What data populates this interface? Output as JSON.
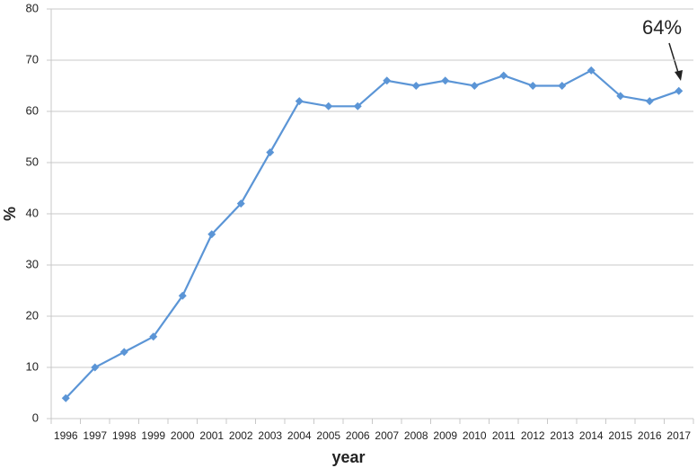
{
  "chart_data": {
    "type": "line",
    "x_label": "year",
    "y_label": "%",
    "categories": [
      "1996",
      "1997",
      "1998",
      "1999",
      "2000",
      "2001",
      "2002",
      "2003",
      "2004",
      "2005",
      "2006",
      "2007",
      "2008",
      "2009",
      "2010",
      "2011",
      "2012",
      "2013",
      "2014",
      "2015",
      "2016",
      "2017"
    ],
    "series": [
      {
        "name": "%",
        "color": "#5b95d6",
        "values": [
          4,
          10,
          13,
          16,
          24,
          36,
          42,
          52,
          62,
          61,
          61,
          66,
          65,
          66,
          65,
          67,
          65,
          65,
          68,
          63,
          62,
          64
        ]
      }
    ],
    "ylim": [
      0,
      80
    ],
    "yticks": [
      0,
      10,
      20,
      30,
      40,
      50,
      60,
      70,
      80
    ],
    "grid": true,
    "annotation": {
      "text": "64%",
      "value": 64
    }
  }
}
